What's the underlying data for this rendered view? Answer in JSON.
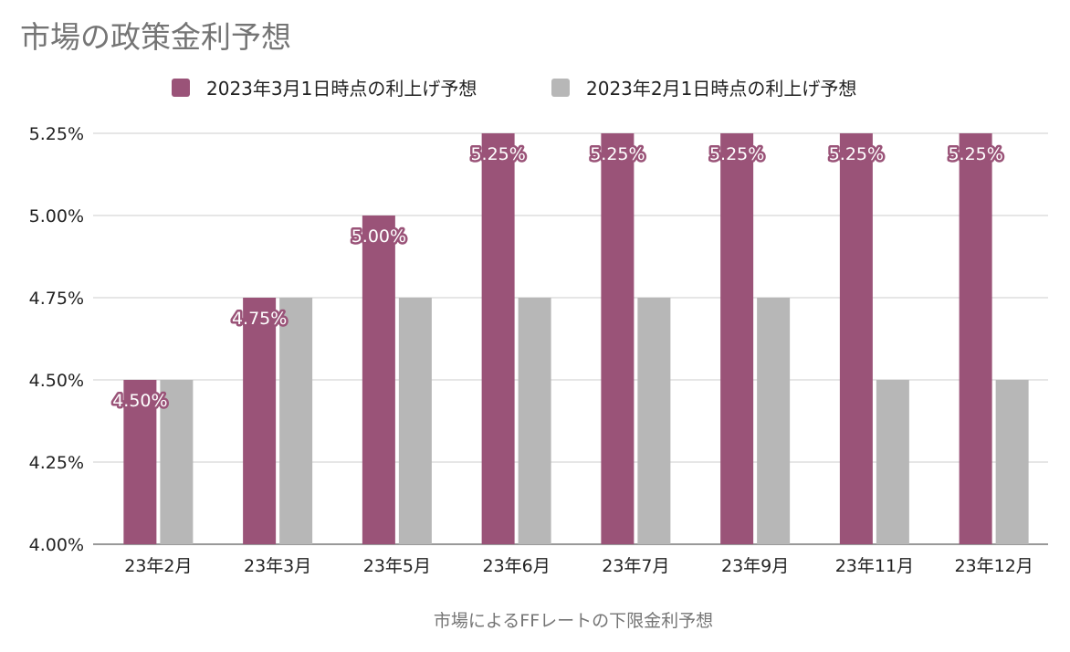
{
  "chart_data": {
    "type": "bar",
    "title": "市場の政策金利予想",
    "xlabel": "市場によるFFレートの下限金利予想",
    "ylabel": "",
    "categories": [
      "23年2月",
      "23年3月",
      "23年5月",
      "23年6月",
      "23年7月",
      "23年9月",
      "23年11月",
      "23年12月"
    ],
    "series": [
      {
        "name": "2023年3月1日時点の利上げ予想",
        "color": "#9a5378",
        "values": [
          4.5,
          4.75,
          5.0,
          5.25,
          5.25,
          5.25,
          5.25,
          5.25
        ],
        "data_labels": [
          "4.50%",
          "4.75%",
          "5.00%",
          "5.25%",
          "5.25%",
          "5.25%",
          "5.25%",
          "5.25%"
        ]
      },
      {
        "name": "2023年2月1日時点の利上げ予想",
        "color": "#b7b7b7",
        "values": [
          4.5,
          4.75,
          4.75,
          4.75,
          4.75,
          4.75,
          4.5,
          4.5
        ]
      }
    ],
    "ylim": [
      4.0,
      5.25
    ],
    "yticks": [
      4.0,
      4.25,
      4.5,
      4.75,
      5.0,
      5.25
    ],
    "ytick_labels": [
      "4.00%",
      "4.25%",
      "4.50%",
      "4.75%",
      "5.00%",
      "5.25%"
    ],
    "grid": true,
    "legend_position": "top"
  }
}
